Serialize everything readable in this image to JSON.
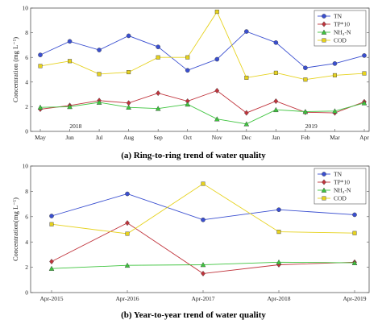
{
  "colors": {
    "TN": "#3a4fd0",
    "TP10": "#c0343c",
    "NH3N": "#3ec43e",
    "COD": "#e6d21e"
  },
  "chart_data": [
    {
      "type": "line",
      "caption": "(a) Ring-to-ring trend of water quality",
      "ylabel": "Concentration (mg L⁻¹)",
      "ylim": [
        0,
        10
      ],
      "yticks": [
        "0",
        "2",
        "4",
        "6",
        "8",
        "10"
      ],
      "categories": [
        "May",
        "Jun",
        "Jul",
        "Aug",
        "Sep",
        "Oct",
        "Nov",
        "Dec",
        "Jan",
        "Feb",
        "Mar",
        "Apr"
      ],
      "year_labels": [
        {
          "text": "2018",
          "at": 1.2
        },
        {
          "text": "2019",
          "at": 9.2
        }
      ],
      "legend": [
        "TN",
        "TP*10",
        "NH₃-N",
        "COD"
      ],
      "series": [
        {
          "name": "TN",
          "color": "#3a4fd0",
          "marker": "circle",
          "values": [
            6.2,
            7.3,
            6.6,
            7.75,
            6.85,
            4.95,
            5.85,
            8.1,
            7.2,
            5.15,
            5.5,
            6.15
          ]
        },
        {
          "name": "TP*10",
          "color": "#c0343c",
          "marker": "diamond",
          "values": [
            1.8,
            2.1,
            2.5,
            2.3,
            3.1,
            2.45,
            3.3,
            1.5,
            2.45,
            1.55,
            1.5,
            2.4
          ]
        },
        {
          "name": "NH₃-N",
          "color": "#3ec43e",
          "marker": "triangle",
          "values": [
            1.95,
            2.0,
            2.35,
            1.95,
            1.85,
            2.2,
            1.0,
            0.6,
            1.75,
            1.6,
            1.65,
            2.3
          ]
        },
        {
          "name": "COD",
          "color": "#e6d21e",
          "marker": "square",
          "values": [
            5.3,
            5.7,
            4.65,
            4.8,
            6.0,
            6.0,
            9.7,
            4.35,
            4.75,
            4.2,
            4.55,
            4.7
          ]
        }
      ]
    },
    {
      "type": "line",
      "caption": "(b) Year-to-year trend of water quality",
      "ylabel": "Concentration(mg L⁻¹)",
      "ylim": [
        0,
        10
      ],
      "yticks": [
        "0",
        "2",
        "4",
        "6",
        "8",
        "10"
      ],
      "categories": [
        "Apr-2015",
        "Apr-2016",
        "Apr-2017",
        "Apr-2018",
        "Apr-2019"
      ],
      "legend": [
        "TN",
        "TP*10",
        "NH₃-N",
        "COD"
      ],
      "series": [
        {
          "name": "TN",
          "color": "#3a4fd0",
          "marker": "circle",
          "values": [
            6.05,
            7.8,
            5.75,
            6.55,
            6.15
          ]
        },
        {
          "name": "TP*10",
          "color": "#c0343c",
          "marker": "diamond",
          "values": [
            2.45,
            5.5,
            1.5,
            2.2,
            2.4
          ]
        },
        {
          "name": "NH₃-N",
          "color": "#3ec43e",
          "marker": "triangle",
          "values": [
            1.9,
            2.15,
            2.2,
            2.4,
            2.35
          ]
        },
        {
          "name": "COD",
          "color": "#e6d21e",
          "marker": "square",
          "values": [
            5.4,
            4.65,
            8.6,
            4.8,
            4.7
          ]
        }
      ]
    }
  ]
}
